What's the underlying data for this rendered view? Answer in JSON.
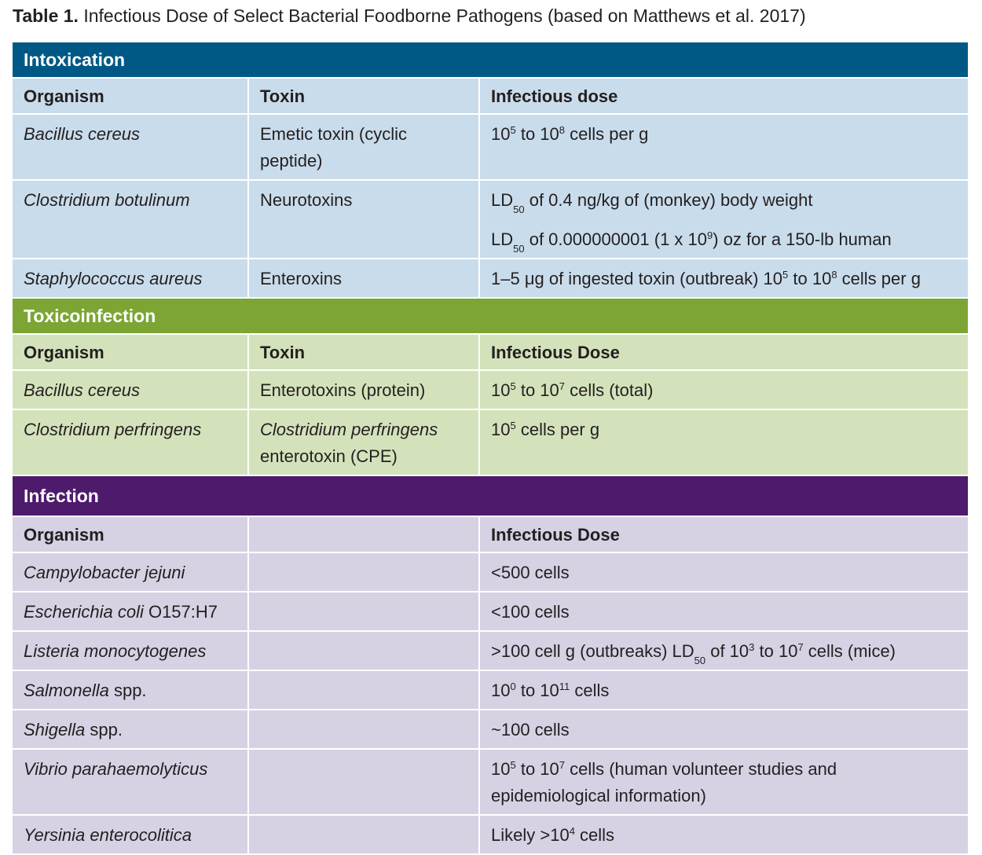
{
  "caption": {
    "label": "Table 1.",
    "title": "Infectious Dose of Select Bacterial Foodborne Pathogens (based on Matthews et al. 2017)"
  },
  "intoxication": {
    "section": "Intoxication",
    "headers": [
      "Organism",
      "Toxin",
      "Infectious dose"
    ],
    "rows": [
      {
        "organism": "Bacillus cereus",
        "toxin": "Emetic toxin (cyclic peptide)",
        "dose_a": "10",
        "dose_a_exp": "5",
        "dose_b": " to 10",
        "dose_b_exp": "8",
        "dose_c": " cells per g"
      },
      {
        "organism": "Clostridium botulinum",
        "toxin": "Neurotoxins",
        "dose1_a": "LD",
        "dose1_sub": "50",
        "dose1_b": " of 0.4 ng/kg of (monkey) body weight",
        "dose2_a": "LD",
        "dose2_sub": "50",
        "dose2_b": " of 0.000000001 (1 x 10",
        "dose2_exp": "9",
        "dose2_c": ") oz for a 150-lb human"
      },
      {
        "organism": "Staphylococcus aureus",
        "toxin": "Enteroxins",
        "dose_a": "1–5 μg of ingested toxin (outbreak) 10",
        "dose_a_exp": "5",
        "dose_b": " to 10",
        "dose_b_exp": "8",
        "dose_c": " cells per g"
      }
    ]
  },
  "toxicoinfection": {
    "section": "Toxicoinfection",
    "headers": [
      "Organism",
      "Toxin",
      "Infectious Dose"
    ],
    "rows": [
      {
        "organism": "Bacillus cereus",
        "toxin": "Enterotoxins (protein)",
        "dose_a": "10",
        "dose_a_exp": "5",
        "dose_b": " to 10",
        "dose_b_exp": "7",
        "dose_c": " cells (total)"
      },
      {
        "organism": "Clostridium perfringens",
        "toxin_italic": "Clostridium perfringens",
        "toxin_rest": "enterotoxin (CPE)",
        "dose_a": "10",
        "dose_a_exp": "5",
        "dose_c": " cells per g"
      }
    ]
  },
  "infection": {
    "section": "Infection",
    "headers": [
      "Organism",
      "",
      "Infectious Dose"
    ],
    "rows": [
      {
        "organism": "Campylobacter jejuni",
        "dose": "<500 cells"
      },
      {
        "organism_italic": "Escherichia coli",
        "organism_rest": " O157:H7",
        "dose": "<100 cells"
      },
      {
        "organism": "Listeria monocytogenes",
        "dose_a": ">100 cell g (outbreaks) LD",
        "dose_sub": "50",
        "dose_b": " of 10",
        "dose_b_exp": "3",
        "dose_c": " to 10",
        "dose_c_exp": "7",
        "dose_d": " cells (mice)"
      },
      {
        "organism_italic": "Salmonella",
        "organism_rest": " spp.",
        "dose_a": "10",
        "dose_a_exp": "0",
        "dose_b": " to 10",
        "dose_b_exp": "11",
        "dose_c": " cells"
      },
      {
        "organism_italic": "Shigella",
        "organism_rest": " spp.",
        "dose": "~100 cells"
      },
      {
        "organism": "Vibrio parahaemolyticus",
        "dose_a": "10",
        "dose_a_exp": "5",
        "dose_b": " to 10",
        "dose_b_exp": "7",
        "dose_c": " cells (human volunteer studies and epidemiological information)"
      },
      {
        "organism": "Yersinia enterocolitica",
        "dose_a": "Likely >10",
        "dose_a_exp": "4",
        "dose_c": " cells"
      }
    ]
  },
  "colors": {
    "intoxication": "#005984",
    "toxicoinfection": "#7ca534",
    "infection": "#4d1a6c"
  }
}
